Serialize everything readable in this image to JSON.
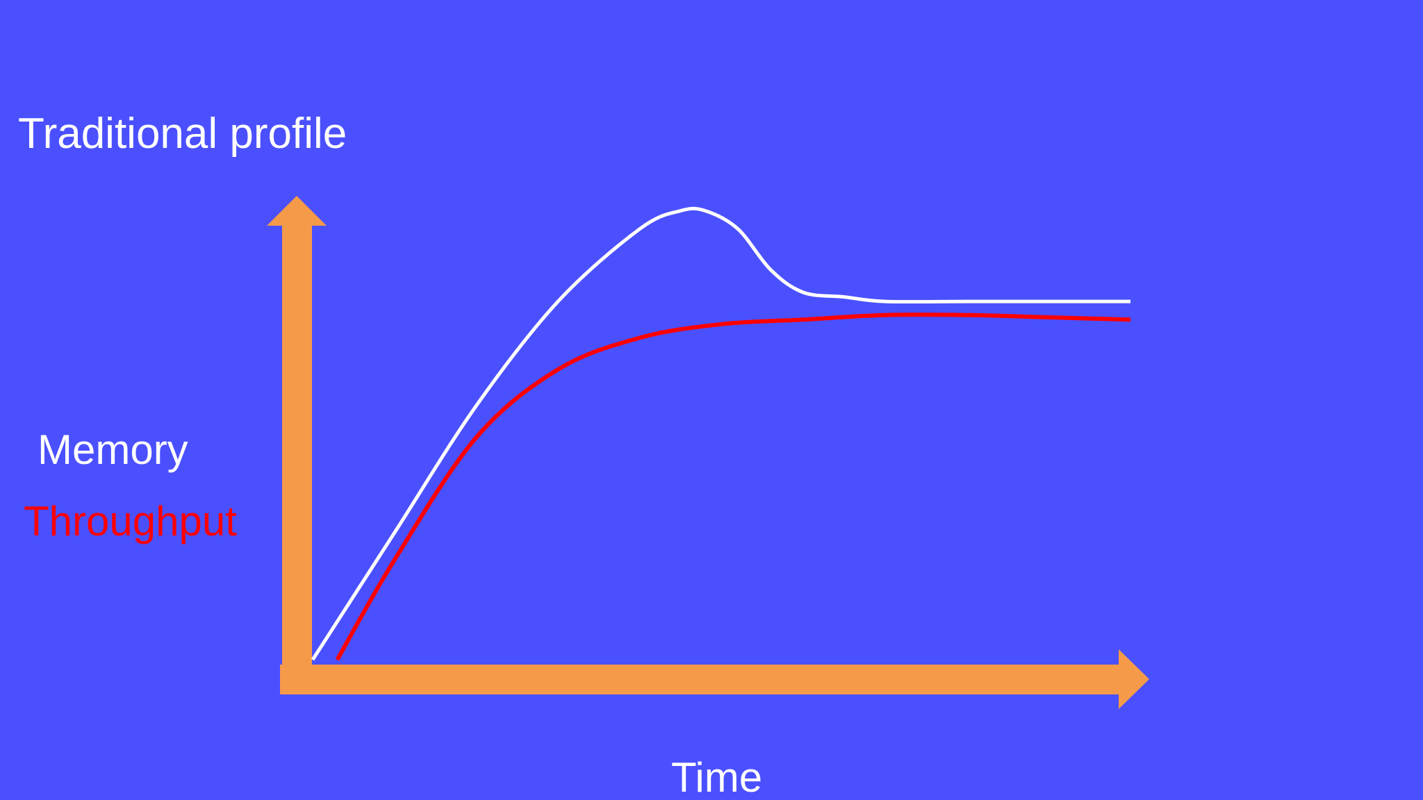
{
  "slide": {
    "background": "#4b50ff",
    "axis_color": "#f59a48"
  },
  "chart_data": {
    "type": "line",
    "title": "Traditional profile",
    "xlabel": "Time",
    "ylabel": "",
    "x_ticks": "none",
    "y_ticks": "none",
    "grid": false,
    "legend_placement": "left",
    "xlim": [
      0,
      100
    ],
    "ylim": [
      0,
      100
    ],
    "series": [
      {
        "name": "Memory",
        "color": "#ffffff",
        "x": [
          0,
          10,
          20,
          30,
          40,
          45,
          48,
          52,
          56,
          60,
          65,
          70,
          80,
          90,
          100
        ],
        "y": [
          0,
          28,
          56,
          79,
          95,
          99,
          99,
          95,
          86,
          81,
          80,
          79,
          79,
          79,
          79
        ]
      },
      {
        "name": "Throughput",
        "color": "#ff0000",
        "x": [
          3,
          10,
          20,
          30,
          40,
          50,
          60,
          70,
          80,
          90,
          100
        ],
        "y": [
          0,
          22,
          49,
          64,
          71,
          74,
          75,
          76,
          76,
          75.5,
          75
        ]
      }
    ]
  }
}
